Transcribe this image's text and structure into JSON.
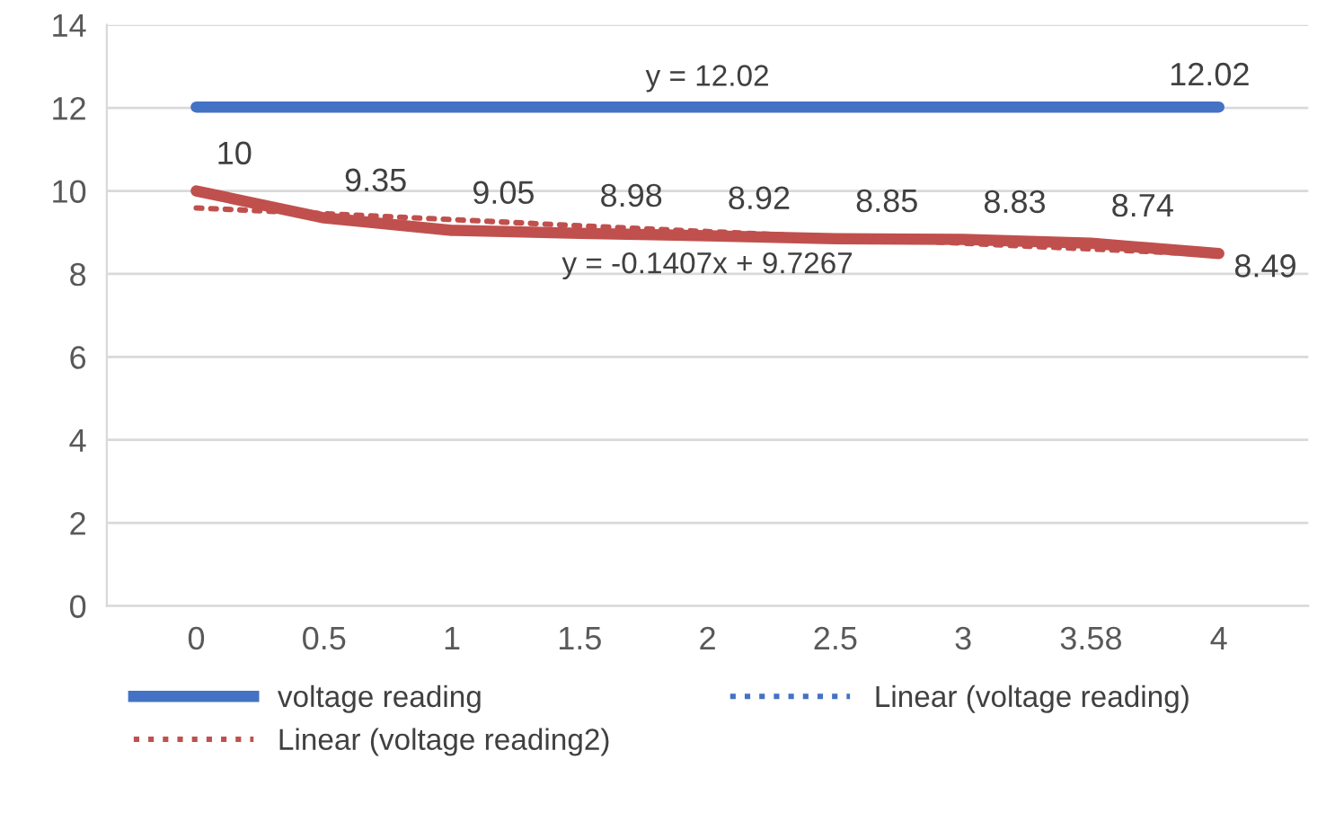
{
  "chart_data": {
    "type": "line",
    "categories": [
      "0",
      "0.5",
      "1",
      "1.5",
      "2",
      "2.5",
      "3",
      "3.58",
      "4"
    ],
    "series": [
      {
        "name": "voltage reading",
        "color": "#4472c4",
        "values": [
          12.02,
          12.02,
          12.02,
          12.02,
          12.02,
          12.02,
          12.02,
          12.02,
          12.02
        ],
        "value_labels": [
          null,
          null,
          null,
          null,
          null,
          null,
          null,
          null,
          "12.02"
        ],
        "line_style": "solid"
      },
      {
        "color": "#c0504d",
        "values": [
          10,
          9.35,
          9.05,
          8.98,
          8.92,
          8.85,
          8.83,
          8.74,
          8.49
        ],
        "value_labels": [
          "10",
          "9.35",
          "9.05",
          "8.98",
          "8.92",
          "8.85",
          "8.83",
          "8.74",
          "8.49"
        ],
        "line_style": "solid"
      },
      {
        "name": "Linear (voltage reading)",
        "color": "#4472c4",
        "values": [
          null,
          null,
          null,
          null,
          null,
          null,
          null,
          null,
          null
        ],
        "line_style": "dotted"
      },
      {
        "name": "Linear (voltage reading2)",
        "color": "#c0504d",
        "values": [
          9.59,
          9.45,
          9.31,
          9.16,
          9.02,
          8.88,
          8.74,
          8.6,
          8.46
        ],
        "line_style": "dotted"
      }
    ],
    "annotations": [
      {
        "text": "y = 12.02",
        "x": "2",
        "y": 12.02
      },
      {
        "text": "y = -0.1407x + 9.7267",
        "x": "2",
        "y": 9.02
      }
    ],
    "ylim": [
      0,
      14
    ],
    "yticks": [
      0,
      2,
      4,
      6,
      8,
      10,
      12,
      14
    ],
    "grid": "y",
    "legend": "bottom",
    "marker": "none"
  }
}
